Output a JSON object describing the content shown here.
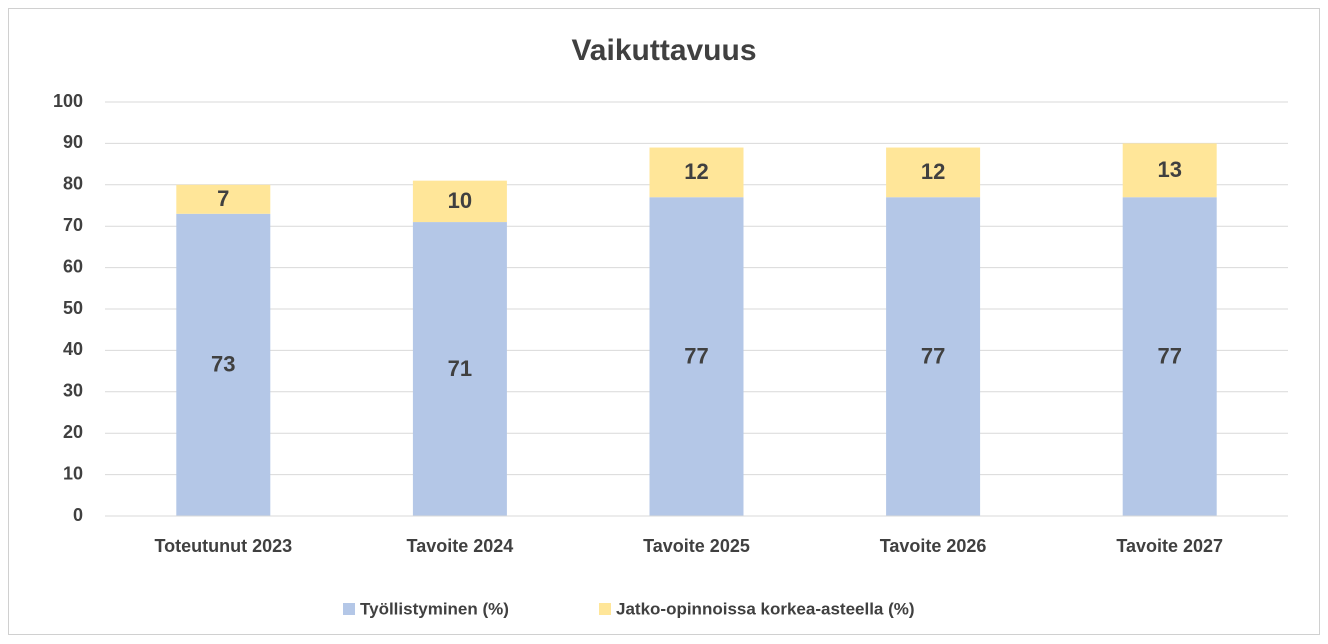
{
  "chart_data": {
    "type": "stacked_bar",
    "title": "Vaikuttavuus",
    "categories": [
      "Toteutunut 2023",
      "Tavoite 2024",
      "Tavoite 2025",
      "Tavoite 2026",
      "Tavoite 2027"
    ],
    "series": [
      {
        "name": "Työllistyminen (%)",
        "color": "#b4c7e7",
        "values": [
          73,
          71,
          77,
          77,
          77
        ]
      },
      {
        "name": "Jatko-opinnoissa korkea-asteella (%)",
        "color": "#ffe699",
        "values": [
          7,
          10,
          12,
          12,
          13
        ]
      }
    ],
    "ylim": [
      0,
      100
    ],
    "yticks": [
      0,
      10,
      20,
      30,
      40,
      50,
      60,
      70,
      80,
      90,
      100
    ],
    "grid": true,
    "legend": "bottom"
  }
}
